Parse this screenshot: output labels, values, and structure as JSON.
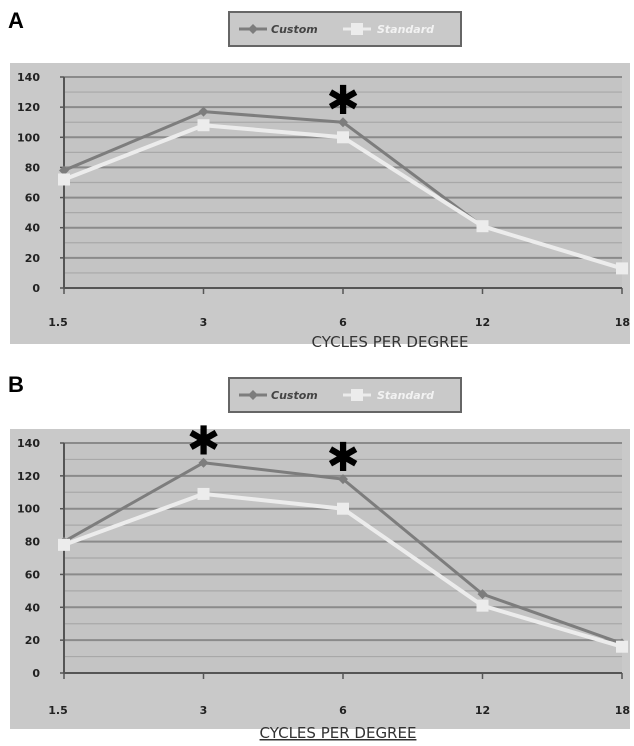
{
  "chart_data": [
    {
      "type": "line",
      "panel_label": "A",
      "categories": [
        "1.5",
        "3",
        "6",
        "12",
        "18"
      ],
      "series": [
        {
          "name": "Custom",
          "values": [
            78,
            117,
            110,
            41,
            13
          ],
          "color": "#7d7d7d"
        },
        {
          "name": "Standard",
          "values": [
            72,
            108,
            100,
            41,
            13
          ],
          "color": "#ececec"
        }
      ],
      "xlabel": "CYCLES PER DEGREE",
      "ylabel": "",
      "ylim": [
        0,
        140
      ],
      "yticks": [
        "0",
        "20",
        "40",
        "60",
        "80",
        "100",
        "120",
        "140"
      ],
      "asterisks": [
        "6"
      ],
      "grid": true,
      "legend": "top-center"
    },
    {
      "type": "line",
      "panel_label": "B",
      "categories": [
        "1.5",
        "3",
        "6",
        "12",
        "18"
      ],
      "series": [
        {
          "name": "Custom",
          "values": [
            80,
            128,
            118,
            48,
            18
          ],
          "color": "#7d7d7d"
        },
        {
          "name": "Standard",
          "values": [
            78,
            109,
            100,
            41,
            16
          ],
          "color": "#ececec"
        }
      ],
      "xlabel": "CYCLES PER DEGREE",
      "ylabel": "",
      "ylim": [
        0,
        140
      ],
      "yticks": [
        "0",
        "20",
        "40",
        "60",
        "80",
        "100",
        "120",
        "140"
      ],
      "asterisks": [
        "3",
        "6"
      ],
      "grid": true,
      "legend": "top-center"
    }
  ]
}
